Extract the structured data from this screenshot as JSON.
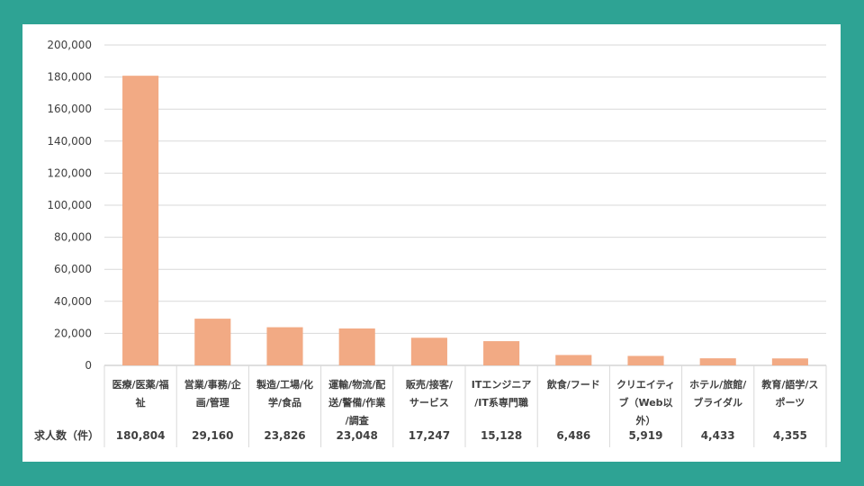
{
  "chart_data": {
    "type": "bar",
    "categories": [
      [
        "医療/医薬/福",
        "祉"
      ],
      [
        "営業/事務/企",
        "画/管理"
      ],
      [
        "製造/工場/化",
        "学/食品"
      ],
      [
        "運輸/物流/配",
        "送/警備/作業",
        "/調査"
      ],
      [
        "販売/接客/",
        "サービス"
      ],
      [
        "ITエンジニア",
        "/IT系専門職"
      ],
      [
        "飲食/フード"
      ],
      [
        "クリエイティ",
        "ブ（Web以",
        "外）"
      ],
      [
        "ホテル/旅館/",
        "ブライダル"
      ],
      [
        "教育/語学/ス",
        "ポーツ"
      ]
    ],
    "values": [
      180804,
      29160,
      23826,
      23048,
      17247,
      15128,
      6486,
      5919,
      4433,
      4355
    ],
    "value_labels": [
      "180,804",
      "29,160",
      "23,826",
      "23,048",
      "17,247",
      "15,128",
      "6,486",
      "5,919",
      "4,433",
      "4,355"
    ],
    "yticks": [
      "0",
      "20,000",
      "40,000",
      "60,000",
      "80,000",
      "100,000",
      "120,000",
      "140,000",
      "160,000",
      "180,000",
      "200,000"
    ],
    "ylim": [
      0,
      200000
    ],
    "row_label": "求人数（件）",
    "bar_color": "#f2aa84",
    "grid": true
  }
}
